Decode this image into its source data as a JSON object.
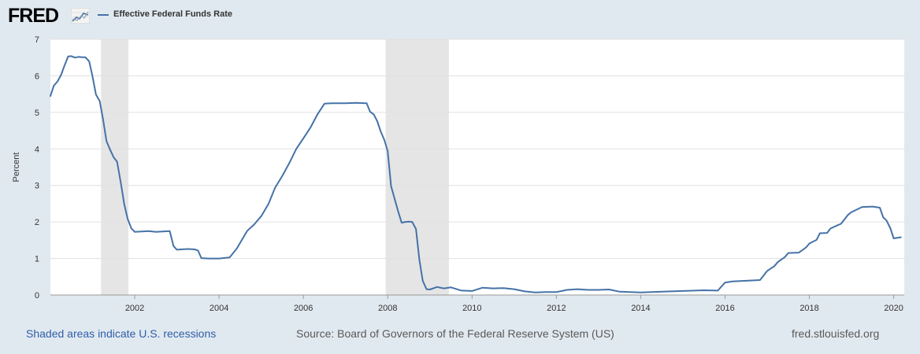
{
  "brand": {
    "logo_text": "FRED",
    "logo_icon": "fred-line-chart-icon",
    "website": "fred.stlouisfed.org"
  },
  "colors": {
    "background": "#e1e9f0",
    "plot_background": "#ffffff",
    "series_line": "#4572a7",
    "recession_shade": "#e5e5e5",
    "gridline": "#e0e0e0",
    "link": "#2f5ea8"
  },
  "footer": {
    "recession_note": "Shaded areas indicate U.S. recessions",
    "source": "Source: Board of Governors of the Federal Reserve System (US)",
    "website": "fred.stlouisfed.org"
  },
  "chart_data": {
    "type": "line",
    "title": "",
    "legend": "top-left",
    "xlabel": "",
    "ylabel": "Percent",
    "xlim": [
      2000.0,
      2020.25
    ],
    "ylim": [
      0,
      7
    ],
    "x_ticks": [
      2002,
      2004,
      2006,
      2008,
      2010,
      2012,
      2014,
      2016,
      2018,
      2020
    ],
    "y_ticks": [
      0,
      1,
      2,
      3,
      4,
      5,
      6,
      7
    ],
    "grid": true,
    "recessions": [
      [
        2001.2,
        2001.85
      ],
      [
        2007.95,
        2009.45
      ]
    ],
    "series": [
      {
        "name": "Effective Federal Funds Rate",
        "x": [
          2000.0,
          2000.08,
          2000.17,
          2000.25,
          2000.33,
          2000.42,
          2000.5,
          2000.58,
          2000.67,
          2000.75,
          2000.83,
          2000.92,
          2001.0,
          2001.08,
          2001.17,
          2001.25,
          2001.33,
          2001.42,
          2001.5,
          2001.58,
          2001.67,
          2001.75,
          2001.83,
          2001.92,
          2002.0,
          2002.17,
          2002.33,
          2002.5,
          2002.67,
          2002.83,
          2002.92,
          2003.0,
          2003.25,
          2003.42,
          2003.5,
          2003.58,
          2003.75,
          2004.0,
          2004.25,
          2004.42,
          2004.5,
          2004.67,
          2004.83,
          2005.0,
          2005.17,
          2005.33,
          2005.5,
          2005.67,
          2005.83,
          2006.0,
          2006.17,
          2006.33,
          2006.5,
          2006.67,
          2007.0,
          2007.25,
          2007.5,
          2007.58,
          2007.67,
          2007.75,
          2007.83,
          2007.92,
          2008.0,
          2008.08,
          2008.17,
          2008.25,
          2008.33,
          2008.42,
          2008.5,
          2008.58,
          2008.67,
          2008.75,
          2008.83,
          2008.92,
          2009.0,
          2009.17,
          2009.33,
          2009.5,
          2009.75,
          2010.0,
          2010.25,
          2010.5,
          2010.75,
          2011.0,
          2011.25,
          2011.5,
          2011.75,
          2012.0,
          2012.25,
          2012.5,
          2012.75,
          2013.0,
          2013.25,
          2013.5,
          2013.75,
          2014.0,
          2014.5,
          2015.0,
          2015.5,
          2015.83,
          2015.92,
          2016.0,
          2016.17,
          2016.5,
          2016.83,
          2016.92,
          2017.0,
          2017.17,
          2017.25,
          2017.42,
          2017.5,
          2017.75,
          2017.92,
          2018.0,
          2018.17,
          2018.25,
          2018.42,
          2018.5,
          2018.67,
          2018.75,
          2018.92,
          2019.0,
          2019.25,
          2019.5,
          2019.67,
          2019.75,
          2019.83,
          2019.92,
          2020.0,
          2020.17
        ],
        "y": [
          5.45,
          5.73,
          5.85,
          6.02,
          6.27,
          6.53,
          6.54,
          6.5,
          6.52,
          6.51,
          6.51,
          6.4,
          5.98,
          5.49,
          5.31,
          4.8,
          4.21,
          3.97,
          3.77,
          3.65,
          3.07,
          2.49,
          2.09,
          1.82,
          1.73,
          1.74,
          1.75,
          1.73,
          1.74,
          1.75,
          1.34,
          1.24,
          1.26,
          1.25,
          1.22,
          1.01,
          1.0,
          1.0,
          1.03,
          1.27,
          1.43,
          1.76,
          1.93,
          2.16,
          2.49,
          2.94,
          3.26,
          3.62,
          4.0,
          4.29,
          4.59,
          4.94,
          5.24,
          5.25,
          5.25,
          5.26,
          5.25,
          5.02,
          4.94,
          4.76,
          4.49,
          4.24,
          3.94,
          2.98,
          2.61,
          2.28,
          1.98,
          2.0,
          2.01,
          2.0,
          1.81,
          0.97,
          0.39,
          0.16,
          0.15,
          0.22,
          0.18,
          0.21,
          0.12,
          0.11,
          0.2,
          0.18,
          0.19,
          0.16,
          0.1,
          0.07,
          0.08,
          0.08,
          0.14,
          0.16,
          0.14,
          0.14,
          0.15,
          0.09,
          0.08,
          0.07,
          0.09,
          0.11,
          0.13,
          0.12,
          0.24,
          0.34,
          0.37,
          0.39,
          0.41,
          0.54,
          0.66,
          0.79,
          0.9,
          1.04,
          1.15,
          1.16,
          1.3,
          1.41,
          1.51,
          1.69,
          1.7,
          1.82,
          1.91,
          1.95,
          2.2,
          2.27,
          2.41,
          2.42,
          2.39,
          2.13,
          2.04,
          1.83,
          1.55,
          1.58
        ]
      }
    ]
  }
}
